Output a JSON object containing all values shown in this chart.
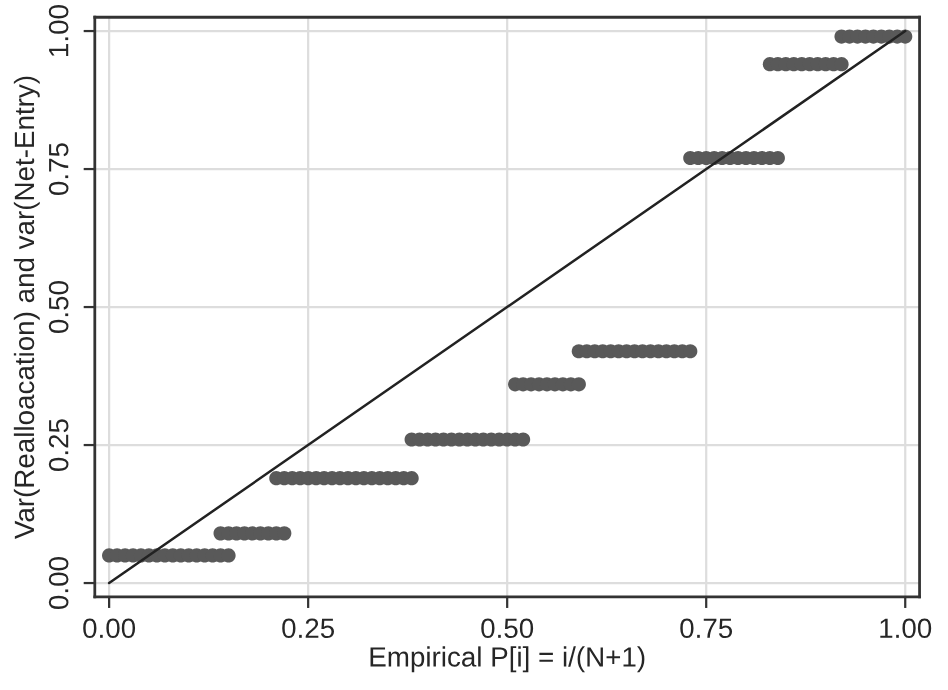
{
  "chart_data": {
    "type": "scatter",
    "xlabel": "Empirical P[i] = i/(N+1)",
    "ylabel": "Var(Realloacation) and var(Net-Entry)",
    "xlim": [
      -0.018,
      1.018
    ],
    "ylim": [
      -0.025,
      1.025
    ],
    "xticks": [
      {
        "value": 0,
        "label": "0.00"
      },
      {
        "value": 0.25,
        "label": "0.25"
      },
      {
        "value": 0.5,
        "label": "0.50"
      },
      {
        "value": 0.75,
        "label": "0.75"
      },
      {
        "value": 1,
        "label": "1.00"
      }
    ],
    "yticks": [
      {
        "value": 0,
        "label": "0.00"
      },
      {
        "value": 0.25,
        "label": "0.25"
      },
      {
        "value": 0.5,
        "label": "0.50"
      },
      {
        "value": 0.75,
        "label": "0.75"
      },
      {
        "value": 1,
        "label": "1.00"
      }
    ],
    "grid": true,
    "marker": "circle",
    "series": [
      {
        "color": "#595959",
        "x": [
          0.0,
          0.01,
          0.02,
          0.03,
          0.04,
          0.05,
          0.06,
          0.07,
          0.08,
          0.09,
          0.1,
          0.11,
          0.12,
          0.13,
          0.14,
          0.15
        ],
        "values": [
          0.05,
          0.05,
          0.05,
          0.05,
          0.05,
          0.05,
          0.05,
          0.05,
          0.05,
          0.05,
          0.05,
          0.05,
          0.05,
          0.05,
          0.05,
          0.05
        ]
      },
      {
        "color": "#595959",
        "x": [
          0.14,
          0.15,
          0.16,
          0.17,
          0.18,
          0.19,
          0.2,
          0.21,
          0.22
        ],
        "values": [
          0.09,
          0.09,
          0.09,
          0.09,
          0.09,
          0.09,
          0.09,
          0.09,
          0.09
        ]
      },
      {
        "color": "#595959",
        "x": [
          0.21,
          0.22,
          0.23,
          0.24,
          0.25,
          0.26,
          0.27,
          0.28,
          0.29,
          0.3,
          0.31,
          0.32,
          0.33,
          0.34,
          0.35,
          0.36,
          0.37,
          0.38
        ],
        "values": [
          0.19,
          0.19,
          0.19,
          0.19,
          0.19,
          0.19,
          0.19,
          0.19,
          0.19,
          0.19,
          0.19,
          0.19,
          0.19,
          0.19,
          0.19,
          0.19,
          0.19,
          0.19
        ]
      },
      {
        "color": "#595959",
        "x": [
          0.38,
          0.39,
          0.4,
          0.41,
          0.42,
          0.43,
          0.44,
          0.45,
          0.46,
          0.47,
          0.48,
          0.49,
          0.5,
          0.51,
          0.52
        ],
        "values": [
          0.26,
          0.26,
          0.26,
          0.26,
          0.26,
          0.26,
          0.26,
          0.26,
          0.26,
          0.26,
          0.26,
          0.26,
          0.26,
          0.26,
          0.26
        ]
      },
      {
        "color": "#595959",
        "x": [
          0.51,
          0.52,
          0.53,
          0.54,
          0.55,
          0.56,
          0.57,
          0.58,
          0.59
        ],
        "values": [
          0.36,
          0.36,
          0.36,
          0.36,
          0.36,
          0.36,
          0.36,
          0.36,
          0.36
        ]
      },
      {
        "color": "#595959",
        "x": [
          0.59,
          0.6,
          0.61,
          0.62,
          0.63,
          0.64,
          0.65,
          0.66,
          0.67,
          0.68,
          0.69,
          0.7,
          0.71,
          0.72,
          0.73
        ],
        "values": [
          0.42,
          0.42,
          0.42,
          0.42,
          0.42,
          0.42,
          0.42,
          0.42,
          0.42,
          0.42,
          0.42,
          0.42,
          0.42,
          0.42,
          0.42
        ]
      },
      {
        "color": "#595959",
        "x": [
          0.73,
          0.74,
          0.75,
          0.76,
          0.77,
          0.78,
          0.79,
          0.8,
          0.81,
          0.82,
          0.83,
          0.84
        ],
        "values": [
          0.77,
          0.77,
          0.77,
          0.77,
          0.77,
          0.77,
          0.77,
          0.77,
          0.77,
          0.77,
          0.77,
          0.77
        ]
      },
      {
        "color": "#595959",
        "x": [
          0.83,
          0.84,
          0.85,
          0.86,
          0.87,
          0.88,
          0.89,
          0.9,
          0.91,
          0.92
        ],
        "values": [
          0.94,
          0.94,
          0.94,
          0.94,
          0.94,
          0.94,
          0.94,
          0.94,
          0.94,
          0.94
        ]
      },
      {
        "color": "#595959",
        "x": [
          0.92,
          0.93,
          0.94,
          0.95,
          0.96,
          0.97,
          0.98,
          0.99,
          1.0
        ],
        "values": [
          0.99,
          0.99,
          0.99,
          0.99,
          0.99,
          0.99,
          0.99,
          0.99,
          0.99
        ]
      },
      {
        "type": "line",
        "color": "#222222",
        "line_style": "solid",
        "marker": "none",
        "x": [
          0,
          1
        ],
        "values": [
          0,
          1
        ]
      }
    ]
  }
}
